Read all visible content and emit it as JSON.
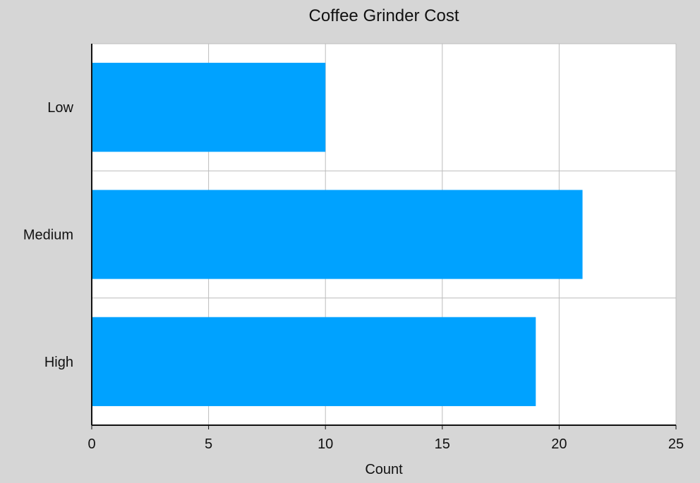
{
  "chart_data": {
    "type": "bar",
    "orientation": "horizontal",
    "title": "Coffee Grinder Cost",
    "xlabel": "Count",
    "ylabel": "",
    "categories": [
      "Low",
      "Medium",
      "High"
    ],
    "values": [
      10,
      21,
      19
    ],
    "xlim": [
      0,
      25
    ],
    "xticks": [
      0,
      5,
      10,
      15,
      20,
      25
    ],
    "grid": true,
    "legend": "none",
    "colors": {
      "bar": "#00a2ff",
      "background": "#d6d6d6",
      "plot_background": "#ffffff",
      "grid": "#bdbdbd",
      "axis": "#111111"
    }
  }
}
